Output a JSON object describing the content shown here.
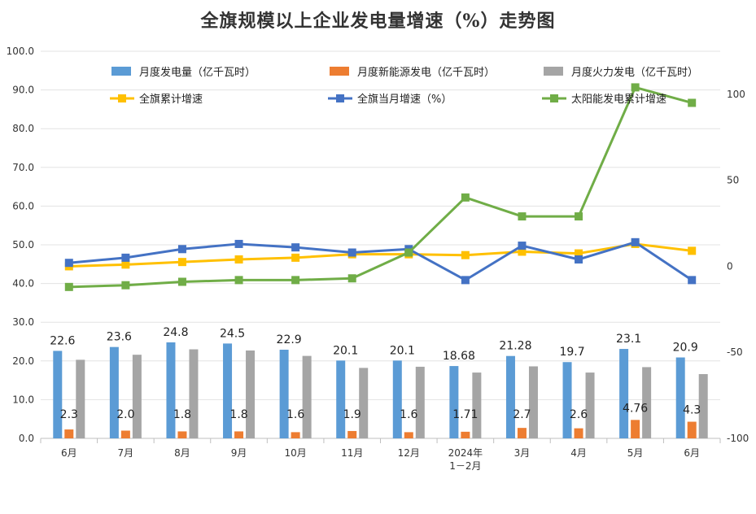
{
  "chart_data": {
    "title": "全旗规模以上企业发电量增速（%）走势图",
    "categories": [
      "6月",
      "7月",
      "8月",
      "9月",
      "10月",
      "11月",
      "12月",
      "2024年\n1－2月",
      "3月",
      "4月",
      "5月",
      "6月"
    ],
    "left_axis": {
      "ticks": [
        "0.0",
        "10.0",
        "20.0",
        "30.0",
        "40.0",
        "50.0",
        "60.0",
        "70.0",
        "80.0",
        "90.0",
        "100.0"
      ],
      "range": [
        0,
        100
      ]
    },
    "right_axis": {
      "ticks": [
        "-100",
        "-50",
        "0",
        "50",
        "100"
      ],
      "range": [
        -100,
        125
      ]
    },
    "bar_series": [
      {
        "name": "月度发电量（亿千瓦时）",
        "color": "#5B9BD5",
        "values": [
          22.6,
          23.6,
          24.8,
          24.5,
          22.9,
          20.1,
          20.1,
          18.68,
          21.28,
          19.7,
          23.1,
          20.9
        ],
        "labels": [
          "22.6",
          "23.6",
          "24.8",
          "24.5",
          "22.9",
          "20.1",
          "20.1",
          "18.68",
          "21.28",
          "19.7",
          "23.1",
          "20.9"
        ]
      },
      {
        "name": "月度新能源发电（亿千瓦时）",
        "color": "#ED7D31",
        "values": [
          2.3,
          2.0,
          1.8,
          1.8,
          1.6,
          1.9,
          1.6,
          1.71,
          2.7,
          2.6,
          4.76,
          4.3
        ],
        "labels": [
          "2.3",
          "2.0",
          "1.8",
          "1.8",
          "1.6",
          "1.9",
          "1.6",
          "1.71",
          "2.7",
          "2.6",
          "4.76",
          "4.3"
        ]
      },
      {
        "name": "月度火力发电（亿千瓦时）",
        "color": "#A5A5A5",
        "values": [
          20.3,
          21.6,
          23.0,
          22.7,
          21.3,
          18.2,
          18.5,
          17.0,
          18.6,
          17.0,
          18.4,
          16.6
        ]
      }
    ],
    "line_series": [
      {
        "name": "全旗累计增速",
        "color": "#FFC000",
        "values": [
          0,
          1,
          2.5,
          4,
          5,
          7,
          7,
          6.5,
          8.5,
          7.5,
          13,
          9
        ]
      },
      {
        "name": "全旗当月增速（%）",
        "color": "#4472C4",
        "values": [
          2,
          5,
          10,
          13,
          11,
          8,
          10,
          -8,
          12,
          4,
          14,
          -8
        ]
      },
      {
        "name": "太阳能发电累计增速",
        "color": "#70AD47",
        "values": [
          -12,
          -11,
          -9,
          -8,
          -8,
          -7,
          8,
          40,
          29,
          29,
          104,
          95
        ]
      }
    ],
    "grid": true,
    "legend": "top"
  }
}
